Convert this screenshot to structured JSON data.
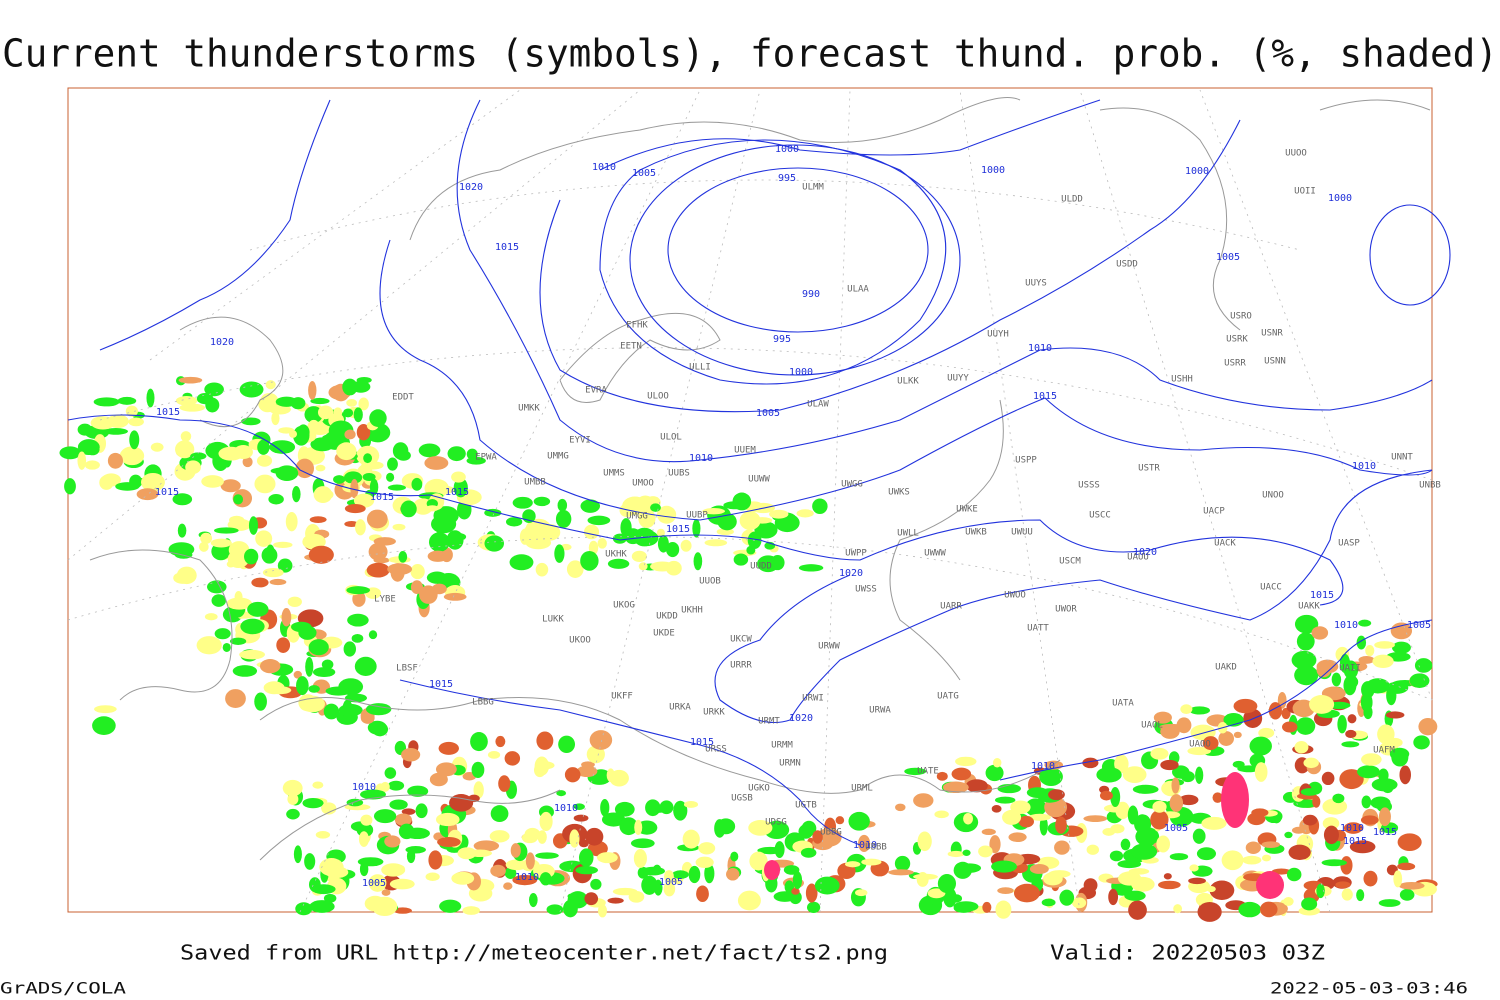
{
  "title": "Current thunderstorms (symbols), forecast thund. prob. (%, shaded)",
  "footer": {
    "source": "Saved from URL http://meteocenter.net/fact/ts2.png",
    "valid": "Valid: 20220503 03Z",
    "software": "GrADS/COLA",
    "timestamp": "2022-05-03-03:46"
  },
  "isobar_labels": [
    1020,
    1010,
    1005,
    1000,
    995,
    1015,
    990,
    995,
    1000,
    1005,
    1000,
    1000,
    1000,
    1005,
    1010,
    1015,
    1010,
    1020,
    1015,
    1015,
    1015,
    1015,
    1015,
    1020,
    1020,
    1015,
    1010,
    1010,
    1005,
    1015,
    1020,
    1015,
    1010,
    1010,
    1010,
    1005,
    1010,
    1015,
    1015,
    1010,
    1010,
    1005,
    1005
  ],
  "stations": [
    "ULMM",
    "ULAA",
    "EFHK",
    "EETN",
    "ULLI",
    "EVRA",
    "ULOO",
    "ULAW",
    "ULKK",
    "UUYY",
    "UUYH",
    "UUYS",
    "ULDD",
    "USDD",
    "UUOO",
    "UOII",
    "USRO",
    "USRK",
    "USNR",
    "USRR",
    "USNN",
    "USHH",
    "UMKK",
    "EDDT",
    "EYVI",
    "ULOL",
    "UUEM",
    "EPWA",
    "UMMG",
    "UMMS",
    "UMOO",
    "UUBS",
    "UUWW",
    "UWGG",
    "UWKS",
    "USSS",
    "USPP",
    "USTR",
    "UNOO",
    "UNBB",
    "UNNT",
    "UMBB",
    "UWKE",
    "USCC",
    "UACP",
    "UMGG",
    "UUBP",
    "UWKB",
    "UWUU",
    "UWLL",
    "UACK",
    "UASP",
    "UKHK",
    "UUDD",
    "UWPP",
    "UWWW",
    "USCM",
    "UAUU",
    "LYBE",
    "LBSF",
    "UUOB",
    "UWSS",
    "UACC",
    "UKHH",
    "UKDD",
    "UKOG",
    "UARR",
    "UWOO",
    "UWOR",
    "UAKK",
    "LUKK",
    "UKDE",
    "UKOO",
    "UATT",
    "UKCW",
    "URWW",
    "URRR",
    "UAKD",
    "UKFF",
    "URKA",
    "URKK",
    "URMT",
    "URWI",
    "UATG",
    "UATA",
    "UAOL",
    "UAOO",
    "URMM",
    "URSS",
    "URMN",
    "URWA",
    "UATE",
    "URML",
    "UGKO",
    "UGSB",
    "UGTB",
    "UDSG",
    "UBBG",
    "UBBB",
    "UAFM",
    "UAII",
    "LBBG"
  ]
}
